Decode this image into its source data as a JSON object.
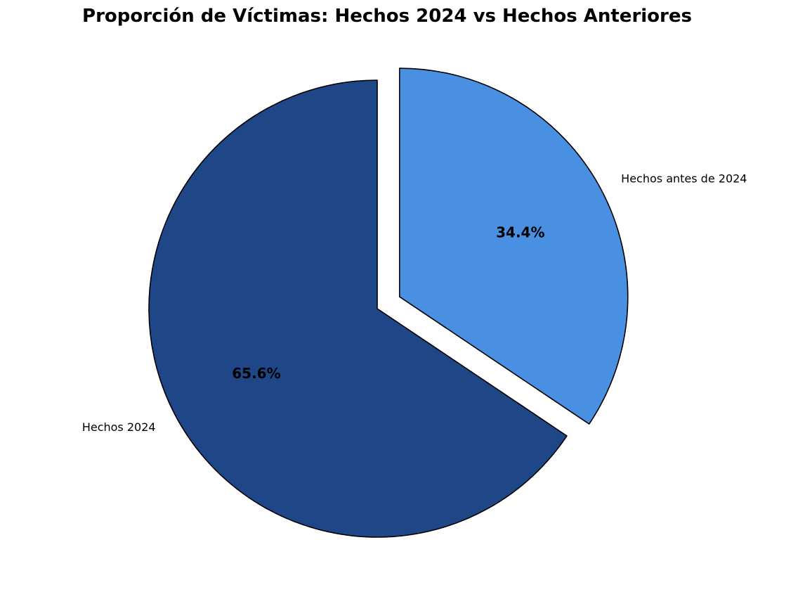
{
  "chart_data": {
    "type": "pie",
    "title": "Proporción de Víctimas: Hechos 2024 vs Hechos Anteriores",
    "slices": [
      {
        "label": "Hechos antes de 2024",
        "value": 34.4,
        "percent_label": "34.4%",
        "color": "#4a90e2",
        "exploded": true
      },
      {
        "label": "Hechos 2024",
        "value": 65.6,
        "percent_label": "65.6%",
        "color": "#1f4788",
        "exploded": false
      }
    ],
    "start_angle": 90,
    "direction": "clockwise",
    "edge_color": "#000000",
    "legend": "none"
  }
}
